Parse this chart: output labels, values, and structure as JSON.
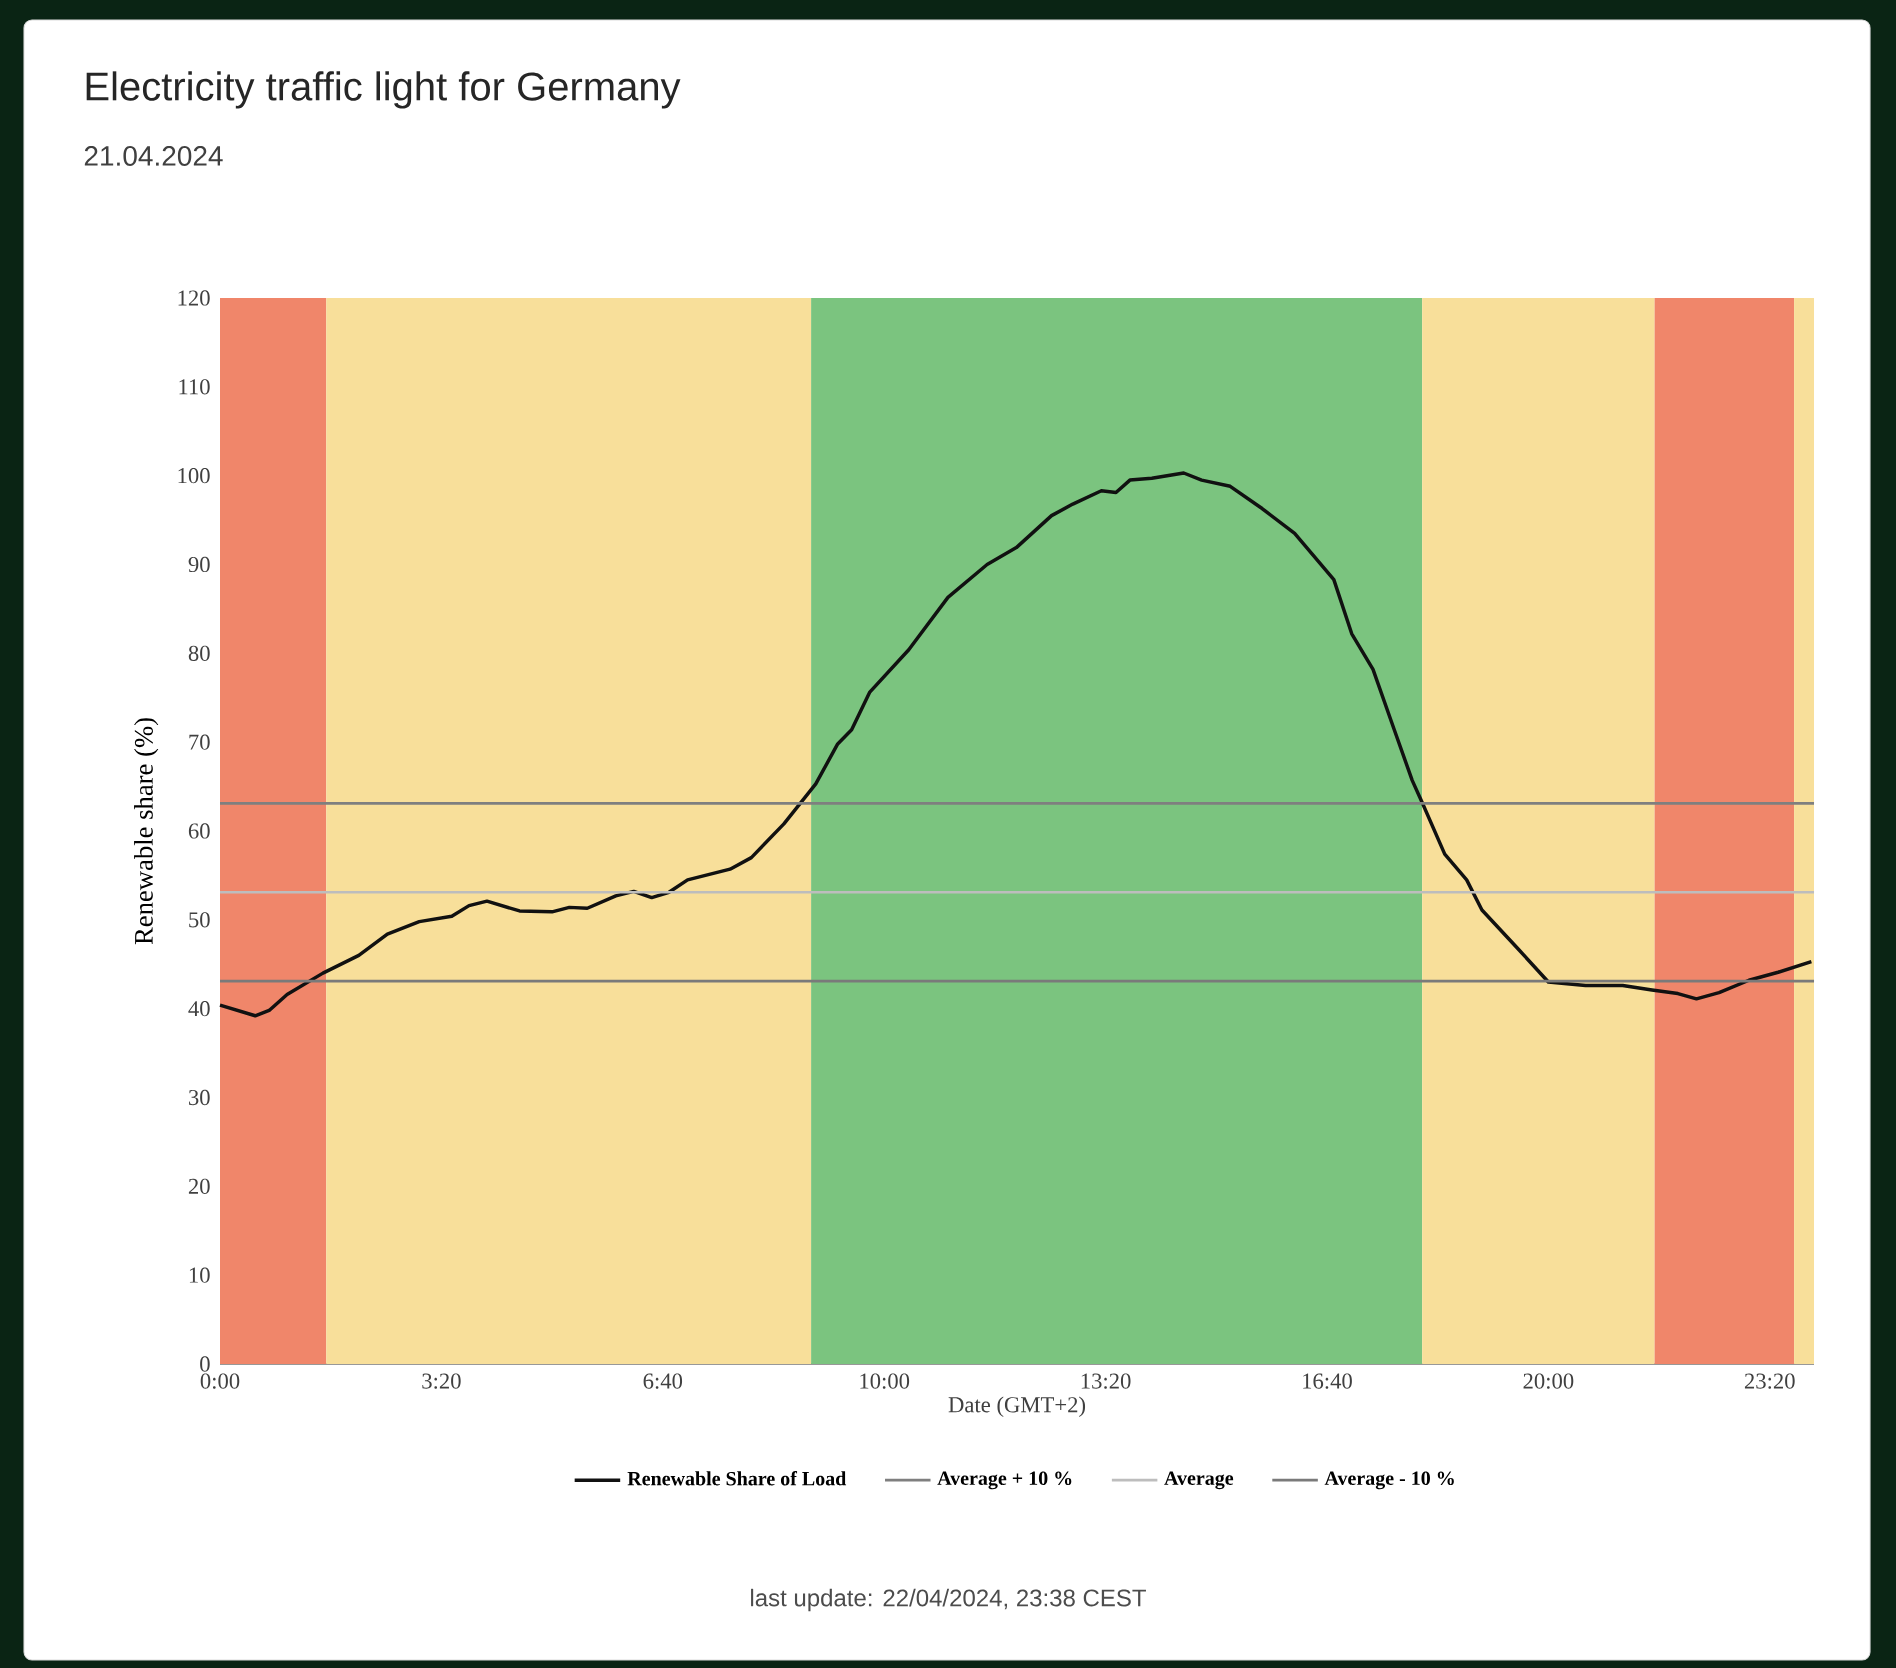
{
  "chart_data": {
    "type": "line",
    "title": "Electricity traffic light for Germany",
    "subtitle": "21.04.2024",
    "xlabel": "Date (GMT+2)",
    "ylabel": "Renewable share (%)",
    "annotations": [
      "last update: 22/04/2024, 23:38 CEST"
    ],
    "xlim": [
      0,
      24
    ],
    "ylim": [
      0,
      120
    ],
    "xticks": [
      {
        "value": 0,
        "label": "0:00"
      },
      {
        "value": 3.333333,
        "label": "3:20"
      },
      {
        "value": 6.666667,
        "label": "6:40"
      },
      {
        "value": 10,
        "label": "10:00"
      },
      {
        "value": 13.333333,
        "label": "13:20"
      },
      {
        "value": 16.666667,
        "label": "16:40"
      },
      {
        "value": 20,
        "label": "20:00"
      },
      {
        "value": 23.333333,
        "label": "23:20"
      }
    ],
    "yticks": [
      0,
      10,
      20,
      30,
      40,
      50,
      60,
      70,
      80,
      90,
      100,
      110,
      120
    ],
    "grid": false,
    "legend": "bottom",
    "marker": "none",
    "line_style": "solid",
    "bands": [
      {
        "axis": "x",
        "from": 0,
        "to": 1.6,
        "color": "#f0866a"
      },
      {
        "axis": "x",
        "from": 1.6,
        "to": 8.9,
        "color": "#f8df9a"
      },
      {
        "axis": "x",
        "from": 8.9,
        "to": 18.1,
        "color": "#7bc47f"
      },
      {
        "axis": "x",
        "from": 18.1,
        "to": 21.6,
        "color": "#f8df9a"
      },
      {
        "axis": "x",
        "from": 21.6,
        "to": 23.7,
        "color": "#f0866a"
      },
      {
        "axis": "x",
        "from": 23.7,
        "to": 24,
        "color": "#f8df9a"
      }
    ],
    "series": [
      {
        "name": "Renewable Share of Load",
        "color": "#111111",
        "x": [
          0,
          0.53,
          0.74,
          1.01,
          1.55,
          2.09,
          2.52,
          3.0,
          3.49,
          3.75,
          4.02,
          4.51,
          5.0,
          5.26,
          5.53,
          5.96,
          6.23,
          6.5,
          6.76,
          7.04,
          7.68,
          8.0,
          8.49,
          8.97,
          9.3,
          9.51,
          9.78,
          10.37,
          10.96,
          11.55,
          11.99,
          12.52,
          12.84,
          13.27,
          13.49,
          13.7,
          14.03,
          14.51,
          14.78,
          15.21,
          15.69,
          16.18,
          16.77,
          17.04,
          17.36,
          17.68,
          17.95,
          18.1,
          18.44,
          18.77,
          19.0,
          19.56,
          20.0,
          20.56,
          21.12,
          21.56,
          21.95,
          22.23,
          22.57,
          23.02,
          23.46,
          23.96
        ],
        "values": [
          40.4,
          39.2,
          39.8,
          41.6,
          44.0,
          46.0,
          48.4,
          49.8,
          50.4,
          51.6,
          52.1,
          51.0,
          50.9,
          51.4,
          51.3,
          52.7,
          53.2,
          52.5,
          53.1,
          54.5,
          55.7,
          57.0,
          60.8,
          65.3,
          69.8,
          71.4,
          75.6,
          80.4,
          86.3,
          90.0,
          91.9,
          95.5,
          96.8,
          98.3,
          98.1,
          99.5,
          99.7,
          100.3,
          99.5,
          98.8,
          96.3,
          93.5,
          88.3,
          82.2,
          78.2,
          71.4,
          65.7,
          63.2,
          57.4,
          54.5,
          51.1,
          46.6,
          43.0,
          42.6,
          42.6,
          42.1,
          41.7,
          41.1,
          41.8,
          43.2,
          44.1,
          45.3
        ]
      },
      {
        "name": "Average + 10 %",
        "color": "#7f7f7f",
        "x": [
          0,
          24
        ],
        "values": [
          63.1,
          63.1
        ]
      },
      {
        "name": "Average",
        "color": "#bdbdbd",
        "x": [
          0,
          24
        ],
        "values": [
          53.1,
          53.1
        ]
      },
      {
        "name": "Average - 10 %",
        "color": "#7a7a7a",
        "x": [
          0,
          24
        ],
        "values": [
          43.1,
          43.1
        ]
      }
    ]
  }
}
